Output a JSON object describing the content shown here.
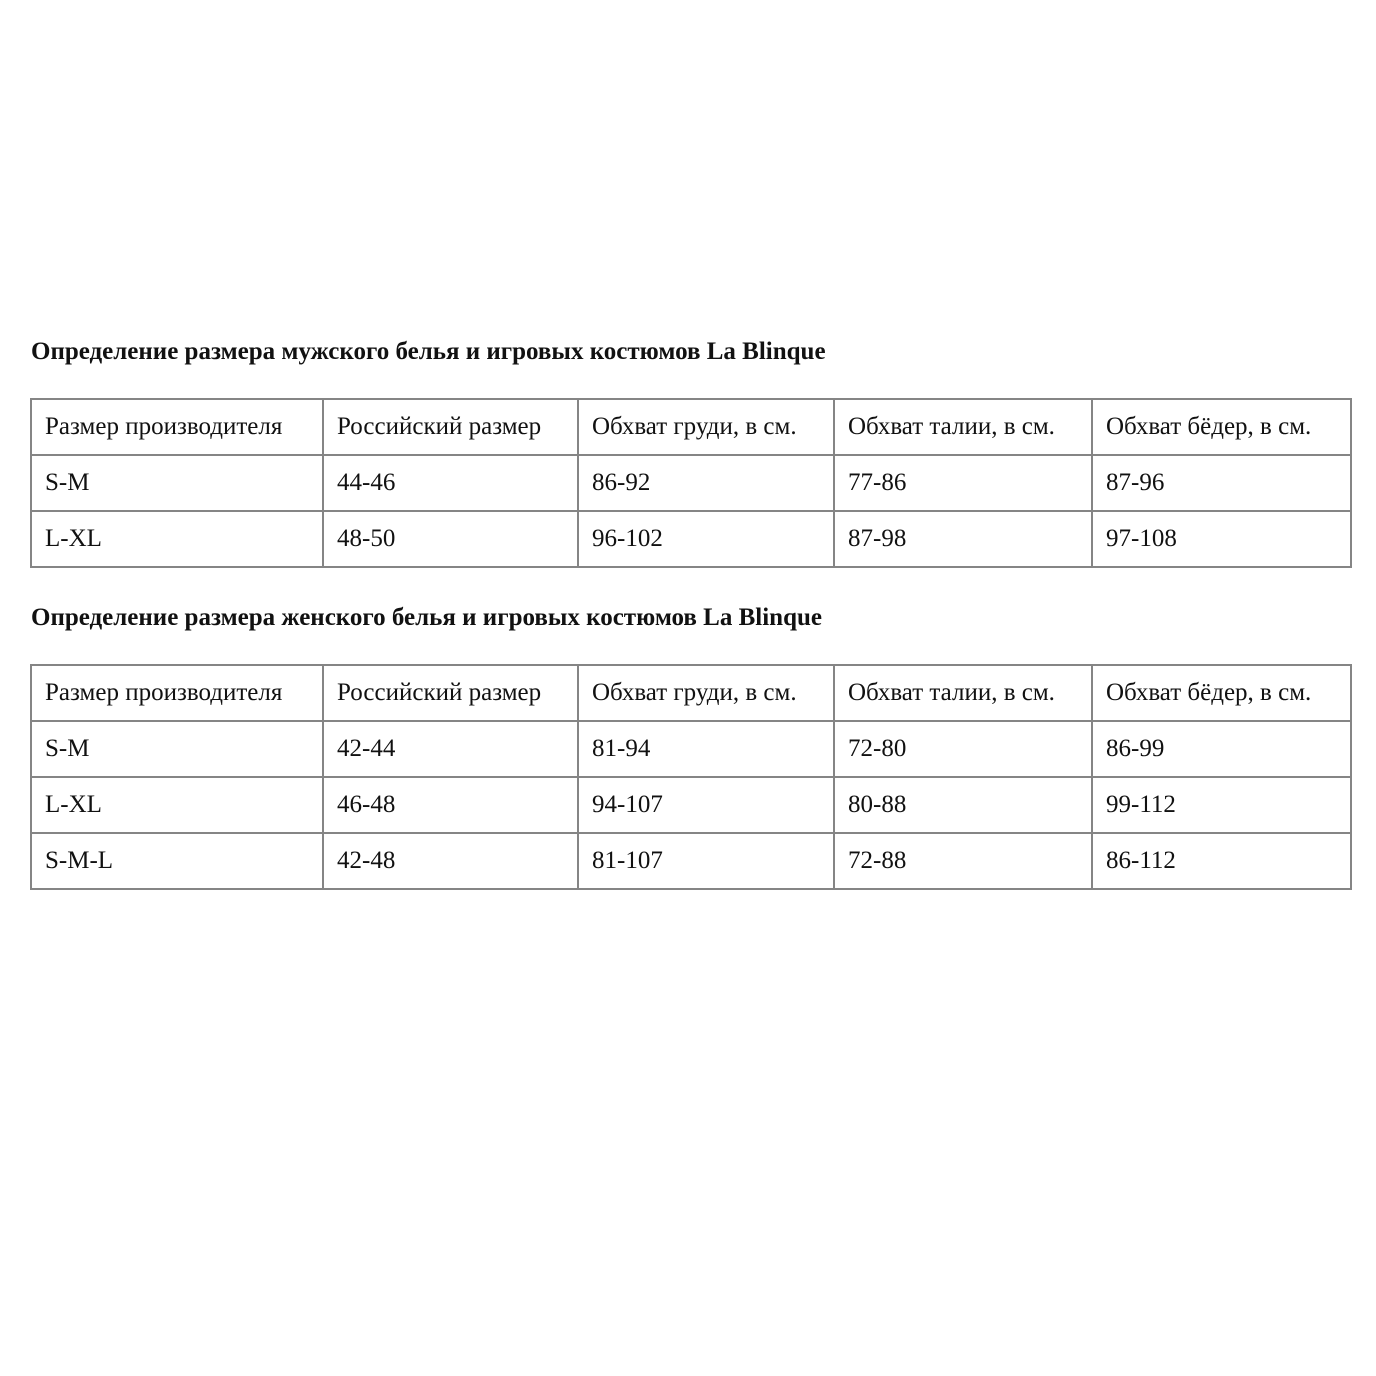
{
  "tables": [
    {
      "title": "Определение размера мужского белья и игровых костюмов La Blinque",
      "headers": [
        "Размер производителя",
        "Российский размер",
        "Обхват груди, в см.",
        "Обхват талии, в см.",
        "Обхват бёдер, в см."
      ],
      "rows": [
        [
          "S-M",
          "44-46",
          "86-92",
          "77-86",
          "87-96"
        ],
        [
          "L-XL",
          "48-50",
          "96-102",
          "87-98",
          "97-108"
        ]
      ]
    },
    {
      "title": "Определение размера женского белья и игровых костюмов La Blinque",
      "headers": [
        "Размер производителя",
        "Российский размер",
        "Обхват груди, в см.",
        "Обхват талии, в см.",
        "Обхват бёдер, в см."
      ],
      "rows": [
        [
          "S-M",
          "42-44",
          "81-94",
          "72-80",
          "86-99"
        ],
        [
          "L-XL",
          "46-48",
          "94-107",
          "80-88",
          "99-112"
        ],
        [
          "S-M-L",
          "42-48",
          "81-107",
          "72-88",
          "86-112"
        ]
      ]
    }
  ]
}
